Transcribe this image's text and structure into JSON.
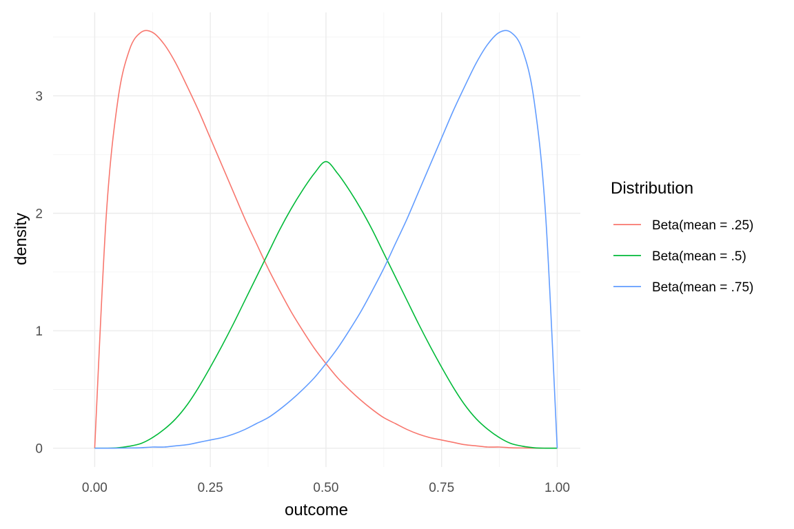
{
  "chart_data": {
    "type": "line",
    "title": "",
    "xlabel": "outcome",
    "ylabel": "density",
    "xlim": [
      -0.09,
      1.05
    ],
    "ylim": [
      -0.16,
      3.71
    ],
    "x_ticks": [
      0,
      0.25,
      0.5,
      0.75,
      1
    ],
    "x_tick_labels": [
      "0.00",
      "0.25",
      "0.50",
      "0.75",
      "1.00"
    ],
    "y_ticks": [
      0,
      1,
      2,
      3
    ],
    "y_tick_labels": [
      "0",
      "1",
      "2",
      "3"
    ],
    "grid": true,
    "legend": {
      "title": "Distribution",
      "position": "right"
    },
    "series": [
      {
        "name": "Beta(mean = .25)",
        "color": "#F8766D",
        "x": [
          0,
          0.025,
          0.05,
          0.075,
          0.1,
          0.125,
          0.15,
          0.175,
          0.2,
          0.225,
          0.25,
          0.275,
          0.3,
          0.325,
          0.35,
          0.375,
          0.4,
          0.425,
          0.45,
          0.475,
          0.5,
          0.525,
          0.55,
          0.575,
          0.6,
          0.625,
          0.65,
          0.675,
          0.7,
          0.725,
          0.75,
          0.775,
          0.8,
          0.825,
          0.85,
          0.875,
          0.9,
          0.925,
          0.95,
          0.975,
          1
        ],
        "y": [
          0,
          1.98,
          2.96,
          3.39,
          3.54,
          3.54,
          3.44,
          3.28,
          3.08,
          2.87,
          2.64,
          2.41,
          2.18,
          1.95,
          1.74,
          1.53,
          1.34,
          1.16,
          1.0,
          0.85,
          0.72,
          0.6,
          0.5,
          0.41,
          0.33,
          0.26,
          0.21,
          0.16,
          0.12,
          0.09,
          0.07,
          0.05,
          0.03,
          0.02,
          0.01,
          0.01,
          0.004,
          0.002,
          0.0005,
          0.0001,
          0
        ]
      },
      {
        "name": "Beta(mean = .5)",
        "color": "#00BA38",
        "x": [
          0,
          0.025,
          0.05,
          0.075,
          0.1,
          0.125,
          0.15,
          0.175,
          0.2,
          0.225,
          0.25,
          0.275,
          0.3,
          0.325,
          0.35,
          0.375,
          0.4,
          0.425,
          0.45,
          0.475,
          0.5,
          0.525,
          0.55,
          0.575,
          0.6,
          0.625,
          0.65,
          0.675,
          0.7,
          0.725,
          0.75,
          0.775,
          0.8,
          0.825,
          0.85,
          0.875,
          0.9,
          0.925,
          0.95,
          0.975,
          1
        ],
        "y": [
          0,
          0.0003,
          0.004,
          0.017,
          0.04,
          0.09,
          0.16,
          0.25,
          0.37,
          0.52,
          0.69,
          0.87,
          1.06,
          1.26,
          1.46,
          1.66,
          1.86,
          2.04,
          2.2,
          2.34,
          2.44,
          2.34,
          2.2,
          2.04,
          1.86,
          1.66,
          1.46,
          1.26,
          1.06,
          0.87,
          0.69,
          0.52,
          0.37,
          0.25,
          0.16,
          0.09,
          0.04,
          0.017,
          0.004,
          0.0003,
          0
        ]
      },
      {
        "name": "Beta(mean = .75)",
        "color": "#619CFF",
        "x": [
          0,
          0.025,
          0.05,
          0.075,
          0.1,
          0.125,
          0.15,
          0.175,
          0.2,
          0.225,
          0.25,
          0.275,
          0.3,
          0.325,
          0.35,
          0.375,
          0.4,
          0.425,
          0.45,
          0.475,
          0.5,
          0.525,
          0.55,
          0.575,
          0.6,
          0.625,
          0.65,
          0.675,
          0.7,
          0.725,
          0.75,
          0.775,
          0.8,
          0.825,
          0.85,
          0.875,
          0.9,
          0.925,
          0.95,
          0.975,
          1
        ],
        "y": [
          0,
          0.0001,
          0.0005,
          0.002,
          0.004,
          0.01,
          0.01,
          0.02,
          0.03,
          0.05,
          0.07,
          0.09,
          0.12,
          0.16,
          0.21,
          0.26,
          0.33,
          0.41,
          0.5,
          0.6,
          0.72,
          0.85,
          1.0,
          1.16,
          1.34,
          1.53,
          1.74,
          1.95,
          2.18,
          2.41,
          2.64,
          2.87,
          3.08,
          3.28,
          3.44,
          3.54,
          3.54,
          3.39,
          2.96,
          1.98,
          0
        ]
      }
    ]
  }
}
